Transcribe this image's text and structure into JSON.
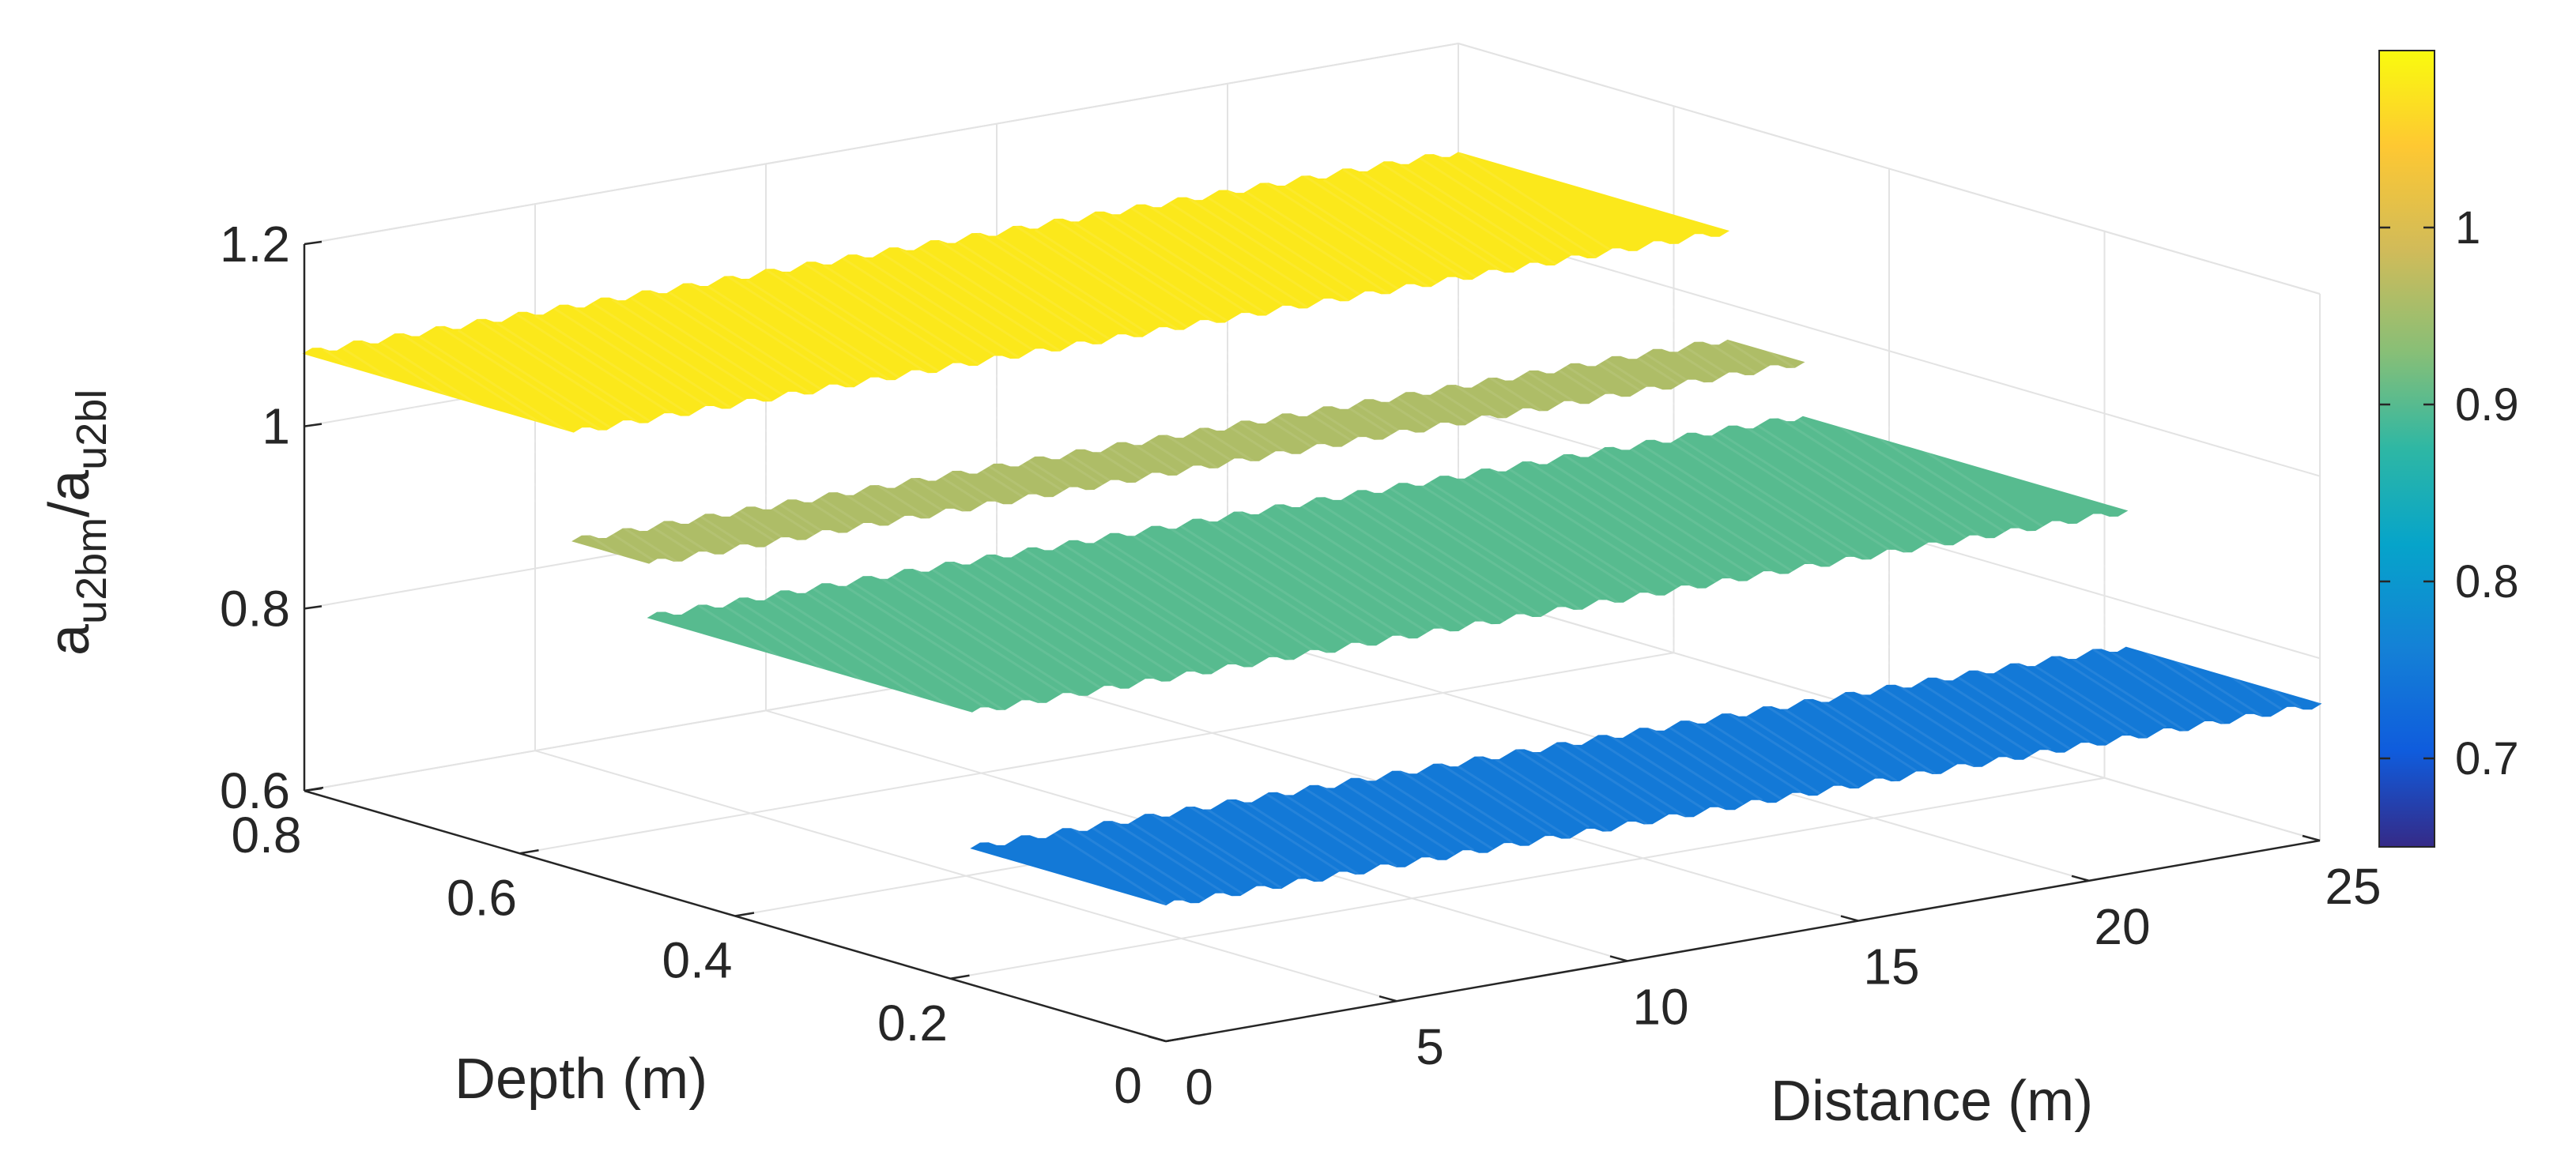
{
  "chart_data": {
    "type": "surface3d",
    "title": "",
    "zlabel_base": "a",
    "zlabel_sub1": "u2bm",
    "zlabel_sep": "/a",
    "zlabel_sub2": "u2bl",
    "xlabel": "Distance (m)",
    "ylabel": "Depth (m)",
    "xlim": [
      0,
      25
    ],
    "ylim": [
      0,
      0.8
    ],
    "zlim": [
      0.6,
      1.2
    ],
    "x_ticks": [
      "0",
      "5",
      "10",
      "15",
      "20",
      "25"
    ],
    "y_ticks": [
      "0",
      "0.2",
      "0.4",
      "0.6",
      "0.8"
    ],
    "z_ticks": [
      "0.6",
      "0.8",
      "1",
      "1.2"
    ],
    "colormap": "parula",
    "colorbar_ticks": [
      "0.7",
      "0.8",
      "0.9",
      "1"
    ],
    "colorbar_range": [
      0.65,
      1.1
    ],
    "surface_x_range": [
      0,
      25
    ],
    "surface_y_range": [
      0,
      0.8
    ],
    "bands": [
      {
        "depth_from": 0.0,
        "depth_to": 0.18,
        "value": 0.75
      },
      {
        "depth_from": 0.18,
        "depth_to": 0.48,
        "value": 0.9
      },
      {
        "depth_from": 0.48,
        "depth_to": 0.55,
        "value": 0.96
      },
      {
        "depth_from": 0.55,
        "depth_to": 0.8,
        "value": 1.08
      }
    ],
    "wave_amplitude": 0.004,
    "wave_count": 28,
    "grid": true
  }
}
